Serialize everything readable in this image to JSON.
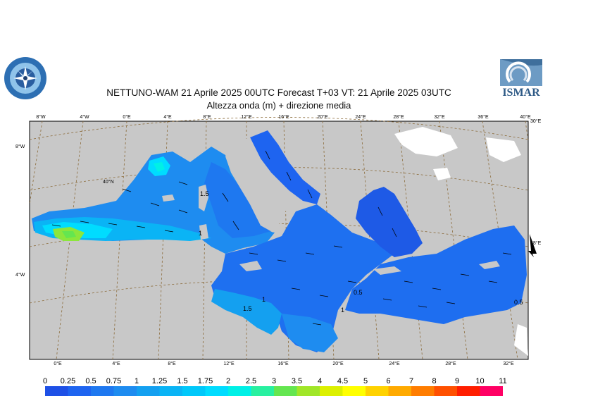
{
  "header": {
    "title": "NETTUNO-WAM  21   Aprile  2025 00UTC Forecast T+03 VT: 21   Aprile  2025 03UTC",
    "subtitle": "Altezza onda (m) + direzione media"
  },
  "logos": {
    "right_text": "ISMAR"
  },
  "map": {
    "top_lon_labels": [
      "8°W",
      "4°W",
      "0°E",
      "4°E",
      "8°E",
      "12°E",
      "16°E",
      "20°E",
      "24°E",
      "28°E",
      "32°E",
      "36°E",
      "40°E"
    ],
    "bottom_lon_labels": [
      "0°E",
      "4°E",
      "8°E",
      "12°E",
      "16°E",
      "20°E",
      "24°E",
      "28°E",
      "32°E"
    ],
    "left_lat_labels": [
      "8°W",
      "4°W"
    ],
    "inner_labels": [
      "40°N",
      "30°E",
      "38°E"
    ],
    "contour_labels": [
      "1",
      "1.5",
      "0.5",
      "1",
      "1.5",
      "1",
      "0.5"
    ],
    "colors": {
      "land": "#c8c8c8",
      "frame": "#000000",
      "graticule": "#8b6b3a",
      "sea_low": "#1e64f0",
      "sea_mid": "#1e8cf0",
      "sea_high": "#00c8ff",
      "sea_peak": "#00ffe6",
      "hotspot": "#8ce63c"
    }
  },
  "legend": {
    "levels": [
      "0",
      "0.25",
      "0.5",
      "0.75",
      "1",
      "1.25",
      "1.5",
      "1.75",
      "2",
      "2.5",
      "3",
      "3.5",
      "4",
      "4.5",
      "5",
      "6",
      "7",
      "8",
      "9",
      "10",
      "11"
    ],
    "colors": [
      "#1e50e6",
      "#1e64f0",
      "#1e78f0",
      "#1e8cf0",
      "#14a0f0",
      "#0ab4f5",
      "#00c8fa",
      "#00dcff",
      "#00f0e6",
      "#28f0a0",
      "#64e650",
      "#a0e628",
      "#dcf000",
      "#ffff00",
      "#ffd200",
      "#ffaa00",
      "#ff7d00",
      "#ff5000",
      "#ff1e00",
      "#ff0064",
      "#ff00c8"
    ]
  }
}
